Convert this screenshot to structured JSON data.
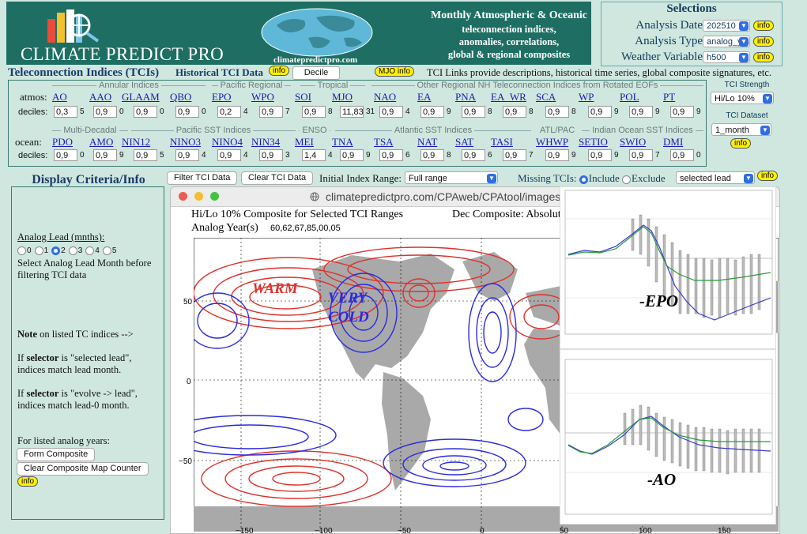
{
  "header": {
    "logo_text": "CLIMATE PREDICT PRO",
    "site": "climatepredictpro.com",
    "tagline": [
      "Monthly Atmospheric & Oceanic",
      "teleconnection indices,",
      "anomalies, correlations,",
      "global & regional composites"
    ]
  },
  "selections": {
    "title": "Selections",
    "rows": [
      {
        "label": "Analysis Date",
        "value": "202510",
        "info": "info"
      },
      {
        "label": "Analysis Type",
        "value": "analog_yrs",
        "info": "info"
      },
      {
        "label": "Weather Variable",
        "value": "h500",
        "info": "info"
      }
    ]
  },
  "tci_bar": {
    "title": "Teleconnection Indices (TCIs)",
    "historical": "Historical TCI Data",
    "info": "info",
    "decile": "Decile",
    "mjo": "MJO info",
    "links": "TCI Links provide descriptions, historical time series, global composite signatures, etc."
  },
  "atmos": {
    "row_label": "atmos:",
    "dec_label": "deciles:",
    "groups": [
      "Annular Indices",
      "Pacific Regional",
      "Tropical",
      "Other Regional NH Teleconnection Indices from Rotated EOFs"
    ],
    "items": [
      {
        "name": "AO",
        "val": "0,3",
        "n": "5"
      },
      {
        "name": "AAO",
        "val": "0,9",
        "n": "0"
      },
      {
        "name": "GLAAM",
        "val": "0,9",
        "n": "0"
      },
      {
        "name": "QBO",
        "val": "0,9",
        "n": "0"
      },
      {
        "name": "EPO",
        "val": "0,2",
        "n": "4"
      },
      {
        "name": "WPO",
        "val": "0,9",
        "n": "7"
      },
      {
        "name": "SOI",
        "val": "0,9",
        "n": "8"
      },
      {
        "name": "MJO",
        "val": "11,83",
        "n": "31"
      },
      {
        "name": "NAO",
        "val": "0,9",
        "n": "4"
      },
      {
        "name": "EA",
        "val": "0,9",
        "n": "9"
      },
      {
        "name": "PNA",
        "val": "0,9",
        "n": "8"
      },
      {
        "name": "EA_WR",
        "val": "0,9",
        "n": "8"
      },
      {
        "name": "SCA",
        "val": "0,9",
        "n": "8"
      },
      {
        "name": "WP",
        "val": "0,9",
        "n": "9"
      },
      {
        "name": "POL",
        "val": "0,9",
        "n": "9"
      },
      {
        "name": "PT",
        "val": "0,9",
        "n": "9"
      }
    ]
  },
  "ocean": {
    "row_label": "ocean:",
    "dec_label": "deciles:",
    "groups": [
      "Multi-Decadal",
      "Pacific SST Indices",
      "ENSO",
      "Atlantic SST Indices",
      "ATL/PAC",
      "Indian Ocean SST Indices"
    ],
    "items": [
      {
        "name": "PDO",
        "val": "0,9",
        "n": "0"
      },
      {
        "name": "AMO",
        "val": "0,9",
        "n": "9"
      },
      {
        "name": "NIN12",
        "val": "0,9",
        "n": "5"
      },
      {
        "name": "NINO3",
        "val": "0,9",
        "n": "4"
      },
      {
        "name": "NINO4",
        "val": "0,9",
        "n": "4"
      },
      {
        "name": "NIN34",
        "val": "0,9",
        "n": "3"
      },
      {
        "name": "MEI",
        "val": "1,4",
        "n": "4"
      },
      {
        "name": "TNA",
        "val": "0,9",
        "n": "9"
      },
      {
        "name": "TSA",
        "val": "0,9",
        "n": "6"
      },
      {
        "name": "NAT",
        "val": "0,9",
        "n": "8"
      },
      {
        "name": "SAT",
        "val": "0,9",
        "n": "6"
      },
      {
        "name": "TASI",
        "val": "0,9",
        "n": "7"
      },
      {
        "name": "WHWP",
        "val": "0,9",
        "n": "9"
      },
      {
        "name": "SETIO",
        "val": "0,9",
        "n": "9"
      },
      {
        "name": "SWIO",
        "val": "0,9",
        "n": "7"
      },
      {
        "name": "DMI",
        "val": "0,9",
        "n": "0"
      }
    ]
  },
  "tci_side": {
    "strength_label": "TCI Strength",
    "strength_value": "Hi/Lo 10%",
    "dataset_label": "TCI Dataset",
    "dataset_value": "1_month",
    "info": "info"
  },
  "display": {
    "title": "Display Criteria/Info",
    "lead_label": "Analog Lead (mnths):",
    "leads": [
      "0",
      "1",
      "2",
      "3",
      "4",
      "5"
    ],
    "lead_selected": 2,
    "lead_help": "Select Analog Lead Month before filtering TCI data",
    "note_bold": "Note",
    "note_rest": "on listed TC indices  -->",
    "selector_prefix": "If",
    "selector_word": "selector",
    "sel1_rest": "is \"selected lead\", indices match lead month.",
    "sel2_rest": "is \"evolve -> lead\", indices match lead-0 month.",
    "years_label": "For listed analog years:",
    "form_btn": "Form Composite",
    "clear_btn": "Clear Composite Map Counter",
    "info": "info"
  },
  "filter": {
    "filter_btn": "Filter TCI Data",
    "clear_btn": "Clear TCI Data",
    "init_label": "Initial Index Range:",
    "range_value": "Full range",
    "missing_label": "Missing TCIs:",
    "include": "Include",
    "exclude": "Exclude",
    "lead_value": "selected lead",
    "info": "info"
  },
  "browser": {
    "url": "climatepredictpro.com/CPAweb/CPAtool/images/co"
  },
  "plot": {
    "title": "Hi/Lo 10% Composite for Selected TCI Ranges",
    "composite": "Dec Composite: Absolute",
    "years_label": "Analog Year(s)",
    "years": "60,62,67,85,00,05",
    "yticks": [
      "50",
      "0",
      "−50"
    ],
    "xticks": [
      "−150",
      "−100",
      "−50",
      "0",
      "50",
      "100",
      "150"
    ],
    "warm": "WARM",
    "cold1": "VERY",
    "cold2": "COLD",
    "warm_color": "#e0302a",
    "cold_color": "#2a2ae0"
  },
  "overlays": {
    "epo_label": "-EPO",
    "ao_label": "-AO"
  }
}
